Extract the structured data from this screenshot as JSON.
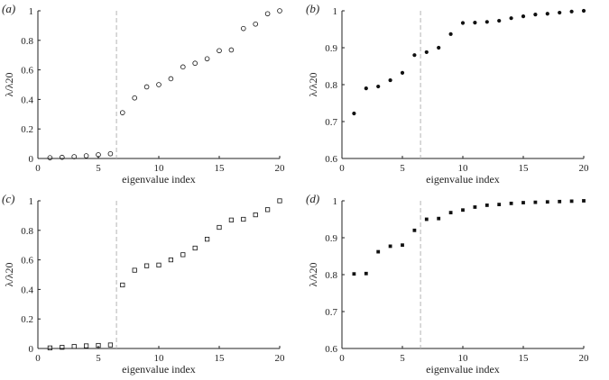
{
  "chart_data": [
    {
      "type": "scatter",
      "panel_label": "(a)",
      "marker": "circle-open",
      "xlabel": "eigenvalue index",
      "ylabel": "λ/λ20",
      "xlim": [
        0,
        20
      ],
      "ylim": [
        0,
        1
      ],
      "xticks": [
        0,
        5,
        10,
        15,
        20
      ],
      "yticks": [
        0,
        0.2,
        0.4,
        0.6,
        0.8,
        1
      ],
      "ytick_labels": [
        "0",
        "0.2",
        "0.4",
        "0.6",
        "0.8",
        "1"
      ],
      "cutoff_line_x": 6.5,
      "grid": false,
      "x": [
        1,
        2,
        3,
        4,
        5,
        6,
        7,
        8,
        9,
        10,
        11,
        12,
        13,
        14,
        15,
        16,
        17,
        18,
        19,
        20
      ],
      "y": [
        0.005,
        0.008,
        0.012,
        0.018,
        0.025,
        0.032,
        0.31,
        0.41,
        0.485,
        0.5,
        0.54,
        0.62,
        0.645,
        0.675,
        0.73,
        0.735,
        0.88,
        0.91,
        0.98,
        1.0
      ]
    },
    {
      "type": "scatter",
      "panel_label": "(b)",
      "marker": "dot",
      "xlabel": "eigenvalue index",
      "ylabel": "λ/λ20",
      "xlim": [
        0,
        20
      ],
      "ylim": [
        0.6,
        1
      ],
      "xticks": [
        0,
        5,
        10,
        15,
        20
      ],
      "yticks": [
        0.6,
        0.7,
        0.8,
        0.9,
        1
      ],
      "ytick_labels": [
        "0.6",
        "0.7",
        "0.8",
        "0.9",
        "1"
      ],
      "cutoff_line_x": 6.5,
      "grid": false,
      "x": [
        1,
        2,
        3,
        4,
        5,
        6,
        7,
        8,
        9,
        10,
        11,
        12,
        13,
        14,
        15,
        16,
        17,
        18,
        19,
        20
      ],
      "y": [
        0.722,
        0.79,
        0.795,
        0.812,
        0.832,
        0.88,
        0.888,
        0.9,
        0.937,
        0.967,
        0.968,
        0.97,
        0.973,
        0.98,
        0.985,
        0.99,
        0.992,
        0.995,
        0.998,
        1.0
      ]
    },
    {
      "type": "scatter",
      "panel_label": "(c)",
      "marker": "square-open",
      "xlabel": "eigenvalue index",
      "ylabel": "λ/λ20",
      "xlim": [
        0,
        20
      ],
      "ylim": [
        0,
        1
      ],
      "xticks": [
        0,
        5,
        10,
        15,
        20
      ],
      "yticks": [
        0,
        0.2,
        0.4,
        0.6,
        0.8,
        1
      ],
      "ytick_labels": [
        "0",
        "0.2",
        "0.4",
        "0.6",
        "0.8",
        "1"
      ],
      "cutoff_line_x": 6.5,
      "grid": false,
      "x": [
        1,
        2,
        3,
        4,
        5,
        6,
        7,
        8,
        9,
        10,
        11,
        12,
        13,
        14,
        15,
        16,
        17,
        18,
        19,
        20
      ],
      "y": [
        0.004,
        0.008,
        0.014,
        0.018,
        0.021,
        0.024,
        0.43,
        0.53,
        0.56,
        0.565,
        0.6,
        0.635,
        0.68,
        0.74,
        0.82,
        0.87,
        0.875,
        0.905,
        0.94,
        1.0
      ]
    },
    {
      "type": "scatter",
      "panel_label": "(d)",
      "marker": "square-filled",
      "xlabel": "eigenvalue index",
      "ylabel": "λ/λ20",
      "xlim": [
        0,
        20
      ],
      "ylim": [
        0.6,
        1
      ],
      "xticks": [
        0,
        5,
        10,
        15,
        20
      ],
      "yticks": [
        0.6,
        0.7,
        0.8,
        0.9,
        1
      ],
      "ytick_labels": [
        "0.6",
        "0.7",
        "0.8",
        "0.9",
        "1"
      ],
      "cutoff_line_x": 6.5,
      "grid": false,
      "x": [
        1,
        2,
        3,
        4,
        5,
        6,
        7,
        8,
        9,
        10,
        11,
        12,
        13,
        14,
        15,
        16,
        17,
        18,
        19,
        20
      ],
      "y": [
        0.802,
        0.803,
        0.862,
        0.877,
        0.88,
        0.92,
        0.95,
        0.952,
        0.968,
        0.975,
        0.983,
        0.988,
        0.99,
        0.993,
        0.995,
        0.996,
        0.997,
        0.998,
        0.999,
        1.0
      ]
    }
  ],
  "colors": {
    "axis": "#222222",
    "marker": "#111111",
    "cutoff_line": "#b5b5b5"
  }
}
